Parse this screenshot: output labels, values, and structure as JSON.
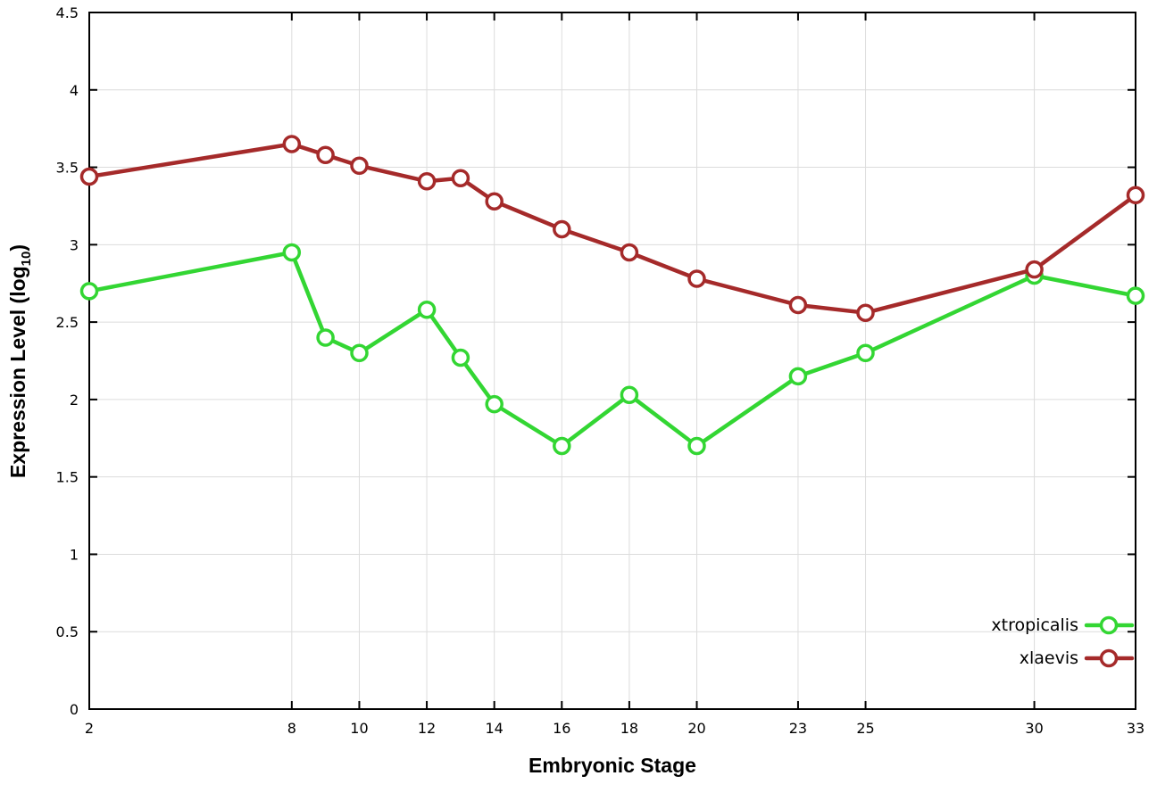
{
  "chart_data": {
    "type": "line",
    "x": [
      2,
      8,
      9,
      10,
      12,
      13,
      14,
      16,
      18,
      20,
      23,
      25,
      30,
      33
    ],
    "series": [
      {
        "name": "xtropicalis",
        "color": "#33d633",
        "values": [
          2.7,
          2.95,
          2.4,
          2.3,
          2.58,
          2.27,
          1.97,
          1.7,
          2.03,
          1.7,
          2.15,
          2.3,
          2.8,
          2.67
        ]
      },
      {
        "name": "xlaevis",
        "color": "#a52a2a",
        "values": [
          3.44,
          3.65,
          3.58,
          3.51,
          3.41,
          3.43,
          3.28,
          3.1,
          2.95,
          2.78,
          2.61,
          2.56,
          2.84,
          3.32
        ]
      }
    ],
    "title": "",
    "xlabel": "Embryonic Stage",
    "ylabel": "Expression Level (log10)",
    "ylabel_parts": {
      "main": "Expression Level (log",
      "sub": "10",
      "end": ")"
    },
    "xlim": [
      2,
      33
    ],
    "ylim": [
      0,
      4.5
    ],
    "xticks": [
      2,
      8,
      10,
      12,
      14,
      16,
      18,
      20,
      23,
      25,
      30,
      33
    ],
    "yticks": [
      0,
      0.5,
      1,
      1.5,
      2,
      2.5,
      3,
      3.5,
      4,
      4.5
    ],
    "grid": true,
    "legend_position": "bottom-right",
    "colors": {
      "grid": "#dcdcdc",
      "axis": "#000000",
      "background": "#ffffff",
      "marker_fill": "#ffffff"
    }
  }
}
